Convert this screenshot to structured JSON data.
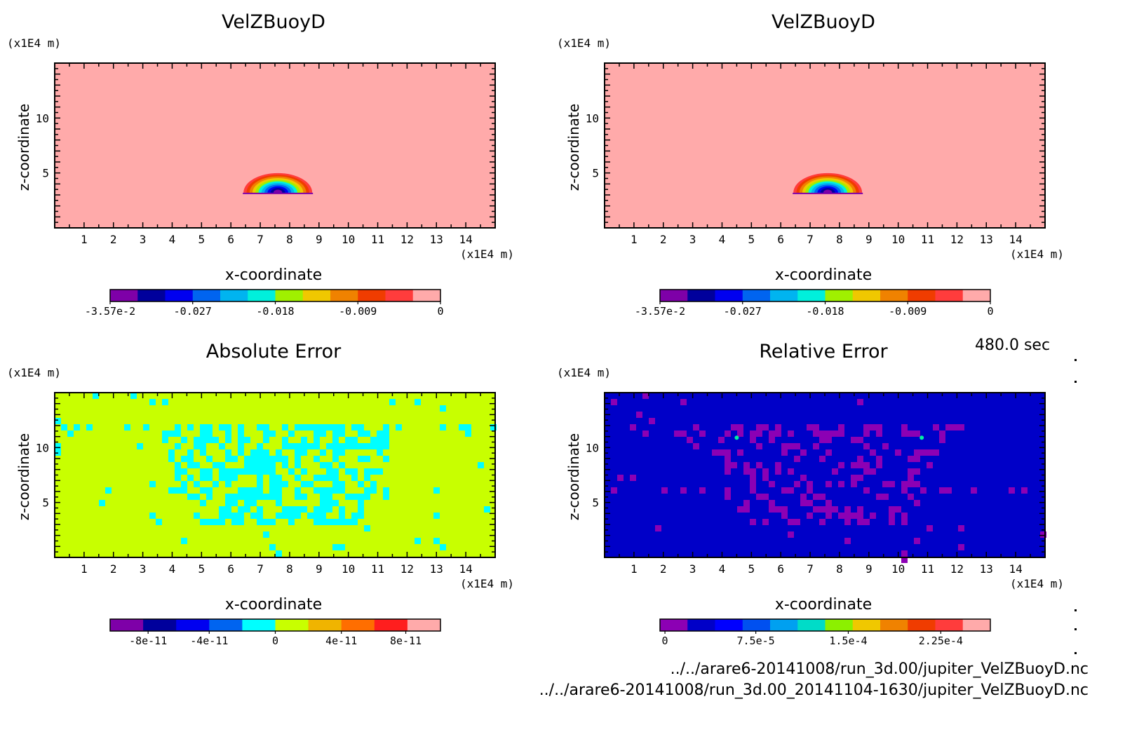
{
  "time_label": "480.0 sec",
  "file_lines": [
    "../../arare6-20141008/run_3d.00/jupiter_VelZBuoyD.nc",
    "../../arare6-20141008/run_3d.00_20141104-1630/jupiter_VelZBuoyD.nc"
  ],
  "colors": {
    "velocity_levels": [
      "#7e00a8",
      "#00009c",
      "#0000f0",
      "#0064f0",
      "#00b4f0",
      "#00f0dc",
      "#a0f000",
      "#f0c800",
      "#f08200",
      "#f03c00",
      "#ff3c3c",
      "#ffaaaa"
    ],
    "abs_error_levels": [
      "#7e00a8",
      "#00009c",
      "#0000f0",
      "#0064f0",
      "#00ffff",
      "#c8ff00",
      "#f0b400",
      "#ff6e00",
      "#ff1e1e",
      "#ffaaaa"
    ],
    "rel_error_levels": [
      "#8c00b4",
      "#0000c8",
      "#0000ff",
      "#0050f0",
      "#00a0f0",
      "#00dcc8",
      "#8cf000",
      "#f0c800",
      "#f08200",
      "#f03c00",
      "#ff3c3c",
      "#ffaaaa"
    ]
  },
  "chart_data": [
    {
      "type": "heatmap",
      "title": "VelZBuoyD",
      "xlabel": "x-coordinate",
      "ylabel": "z-coordinate",
      "x_unit": "(x1E4 m)",
      "y_unit": "(x1E4 m)",
      "xlim": [
        0,
        15
      ],
      "ylim": [
        0,
        15
      ],
      "x_ticks": [
        "1",
        "2",
        "3",
        "4",
        "5",
        "6",
        "7",
        "8",
        "9",
        "10",
        "11",
        "12",
        "13",
        "14"
      ],
      "y_ticks": [
        "5",
        "10"
      ],
      "field": "buoyant thermal plume",
      "plume_center": [
        7.6,
        3.5
      ],
      "colorbar_levels": 12,
      "colorbar_labels": [
        "-3.57e-2",
        "-0.027",
        "-0.018",
        "-0.009",
        "0"
      ]
    },
    {
      "type": "heatmap",
      "title": "VelZBuoyD",
      "xlabel": "x-coordinate",
      "ylabel": "z-coordinate",
      "x_unit": "(x1E4 m)",
      "y_unit": "(x1E4 m)",
      "xlim": [
        0,
        15
      ],
      "ylim": [
        0,
        15
      ],
      "x_ticks": [
        "1",
        "2",
        "3",
        "4",
        "5",
        "6",
        "7",
        "8",
        "9",
        "10",
        "11",
        "12",
        "13",
        "14"
      ],
      "y_ticks": [
        "5",
        "10"
      ],
      "field": "buoyant thermal plume",
      "plume_center": [
        7.6,
        3.5
      ],
      "colorbar_levels": 12,
      "colorbar_labels": [
        "-3.57e-2",
        "-0.027",
        "-0.018",
        "-0.009",
        "0"
      ]
    },
    {
      "type": "heatmap",
      "title": "Absolute Error",
      "xlabel": "x-coordinate",
      "ylabel": "z-coordinate",
      "x_unit": "(x1E4 m)",
      "y_unit": "(x1E4 m)",
      "xlim": [
        0,
        15
      ],
      "ylim": [
        0,
        15
      ],
      "x_ticks": [
        "1",
        "2",
        "3",
        "4",
        "5",
        "6",
        "7",
        "8",
        "9",
        "10",
        "11",
        "12",
        "13",
        "14"
      ],
      "y_ticks": [
        "5",
        "10"
      ],
      "field": "noise pattern",
      "colorbar_levels": 10,
      "colorbar_labels": [
        "-8e-11",
        "-4e-11",
        "0",
        "4e-11",
        "8e-11"
      ]
    },
    {
      "type": "heatmap",
      "title": "Relative Error",
      "xlabel": "x-coordinate",
      "ylabel": "z-coordinate",
      "x_unit": "(x1E4 m)",
      "y_unit": "(x1E4 m)",
      "xlim": [
        0,
        15
      ],
      "ylim": [
        0,
        15
      ],
      "x_ticks": [
        "1",
        "2",
        "3",
        "4",
        "5",
        "6",
        "7",
        "8",
        "9",
        "10",
        "11",
        "12",
        "13",
        "14"
      ],
      "y_ticks": [
        "5",
        "10"
      ],
      "field": "noise pattern",
      "colorbar_levels": 12,
      "colorbar_labels": [
        "0",
        "7.5e-5",
        "1.5e-4",
        "2.25e-4"
      ]
    }
  ]
}
